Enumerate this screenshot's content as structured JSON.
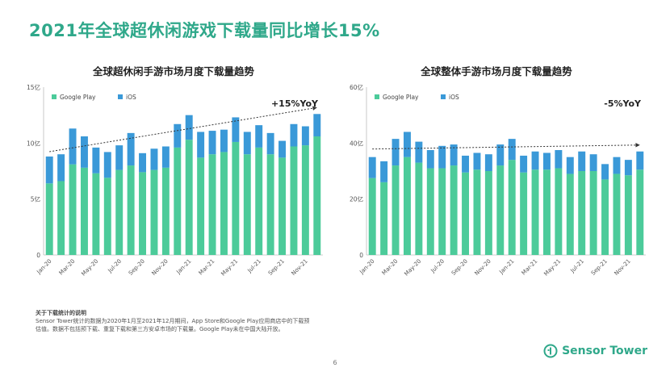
{
  "page": {
    "title": "2021年全球超休闲游戏下载量同比增长15%",
    "page_number": "6"
  },
  "footnote": {
    "title": "关于下载统计的说明",
    "body": "Sensor Tower统计的数据为2020年1月至2021年12月期间，App Store和Google Play应用商店中的下载预估值。数据不包括预下载、重复下载和第三方安卓市场的下载量。Google Play未在中国大陆开放。"
  },
  "brand": {
    "name": "Sensor Tower"
  },
  "colors": {
    "accent": "#2fa88a",
    "google_play": "#4ccb9a",
    "ios": "#3a99d8"
  },
  "chart_data": [
    {
      "type": "bar",
      "stacked": true,
      "title": "全球超休闲手游市场月度下载量趋势",
      "annotation": "+15%YoY",
      "categories": [
        "Jan-20",
        "Feb-20",
        "Mar-20",
        "Apr-20",
        "May-20",
        "Jun-20",
        "Jul-20",
        "Aug-20",
        "Sep-20",
        "Oct-20",
        "Nov-20",
        "Dec-20",
        "Jan-21",
        "Feb-21",
        "Mar-21",
        "Apr-21",
        "May-21",
        "Jun-21",
        "Jul-21",
        "Aug-21",
        "Sep-21",
        "Oct-21",
        "Nov-21",
        "Dec-21"
      ],
      "x_tick_labels": [
        "Jan-20",
        "Mar-20",
        "May-20",
        "Jul-20",
        "Sep-20",
        "Nov-20",
        "Jan-21",
        "Mar-21",
        "May-21",
        "Jul-21",
        "Sep-21",
        "Nov-21"
      ],
      "y_ticks": [
        "0",
        "5亿",
        "10亿",
        "15亿"
      ],
      "ylim": [
        0,
        15
      ],
      "series": [
        {
          "name": "Google Play",
          "values": [
            6.4,
            6.6,
            8.1,
            7.8,
            7.3,
            6.9,
            7.6,
            8.0,
            7.4,
            7.6,
            7.8,
            9.6,
            10.3,
            8.7,
            9.0,
            9.2,
            10.1,
            9.0,
            9.6,
            9.0,
            8.7,
            9.7,
            9.8,
            10.6
          ]
        },
        {
          "name": "iOS",
          "values": [
            2.4,
            2.4,
            3.2,
            2.8,
            2.3,
            2.3,
            2.2,
            2.9,
            1.7,
            1.9,
            1.9,
            2.1,
            2.2,
            2.3,
            2.1,
            2.0,
            2.2,
            2.0,
            2.0,
            1.9,
            1.5,
            2.0,
            1.7,
            2.0
          ]
        }
      ],
      "legend": "top-left",
      "trend_line": true
    },
    {
      "type": "bar",
      "stacked": true,
      "title": "全球整体手游市场月度下载量趋势",
      "annotation": "-5%YoY",
      "categories": [
        "Jan-20",
        "Feb-20",
        "Mar-20",
        "Apr-20",
        "May-20",
        "Jun-20",
        "Jul-20",
        "Aug-20",
        "Sep-20",
        "Oct-20",
        "Nov-20",
        "Dec-20",
        "Jan-21",
        "Feb-21",
        "Mar-21",
        "Apr-21",
        "May-21",
        "Jun-21",
        "Jul-21",
        "Aug-21",
        "Sep-21",
        "Oct-21",
        "Nov-21",
        "Dec-21"
      ],
      "x_tick_labels": [
        "Jan-20",
        "Mar-20",
        "May-20",
        "Jul-20",
        "Sep-20",
        "Nov-20",
        "Jan-21",
        "Mar-21",
        "May-21",
        "Jul-21",
        "Sep-21",
        "Nov-21"
      ],
      "y_ticks": [
        "0",
        "20亿",
        "40亿",
        "60亿"
      ],
      "ylim": [
        0,
        60
      ],
      "series": [
        {
          "name": "Google Play",
          "values": [
            27.5,
            26.0,
            32.0,
            35.0,
            33.0,
            31.0,
            31.0,
            32.0,
            29.5,
            30.5,
            30.0,
            32.0,
            34.0,
            29.5,
            30.5,
            30.5,
            31.0,
            29.0,
            30.0,
            30.0,
            27.0,
            29.0,
            28.5,
            30.5
          ]
        },
        {
          "name": "iOS",
          "values": [
            7.5,
            7.5,
            9.5,
            9.0,
            7.5,
            6.5,
            8.0,
            7.5,
            6.0,
            6.0,
            6.0,
            7.5,
            7.5,
            6.0,
            6.5,
            6.0,
            6.5,
            6.0,
            7.0,
            6.0,
            5.5,
            6.0,
            5.5,
            6.5
          ]
        }
      ],
      "legend": "top-left",
      "trend_line": true
    }
  ]
}
